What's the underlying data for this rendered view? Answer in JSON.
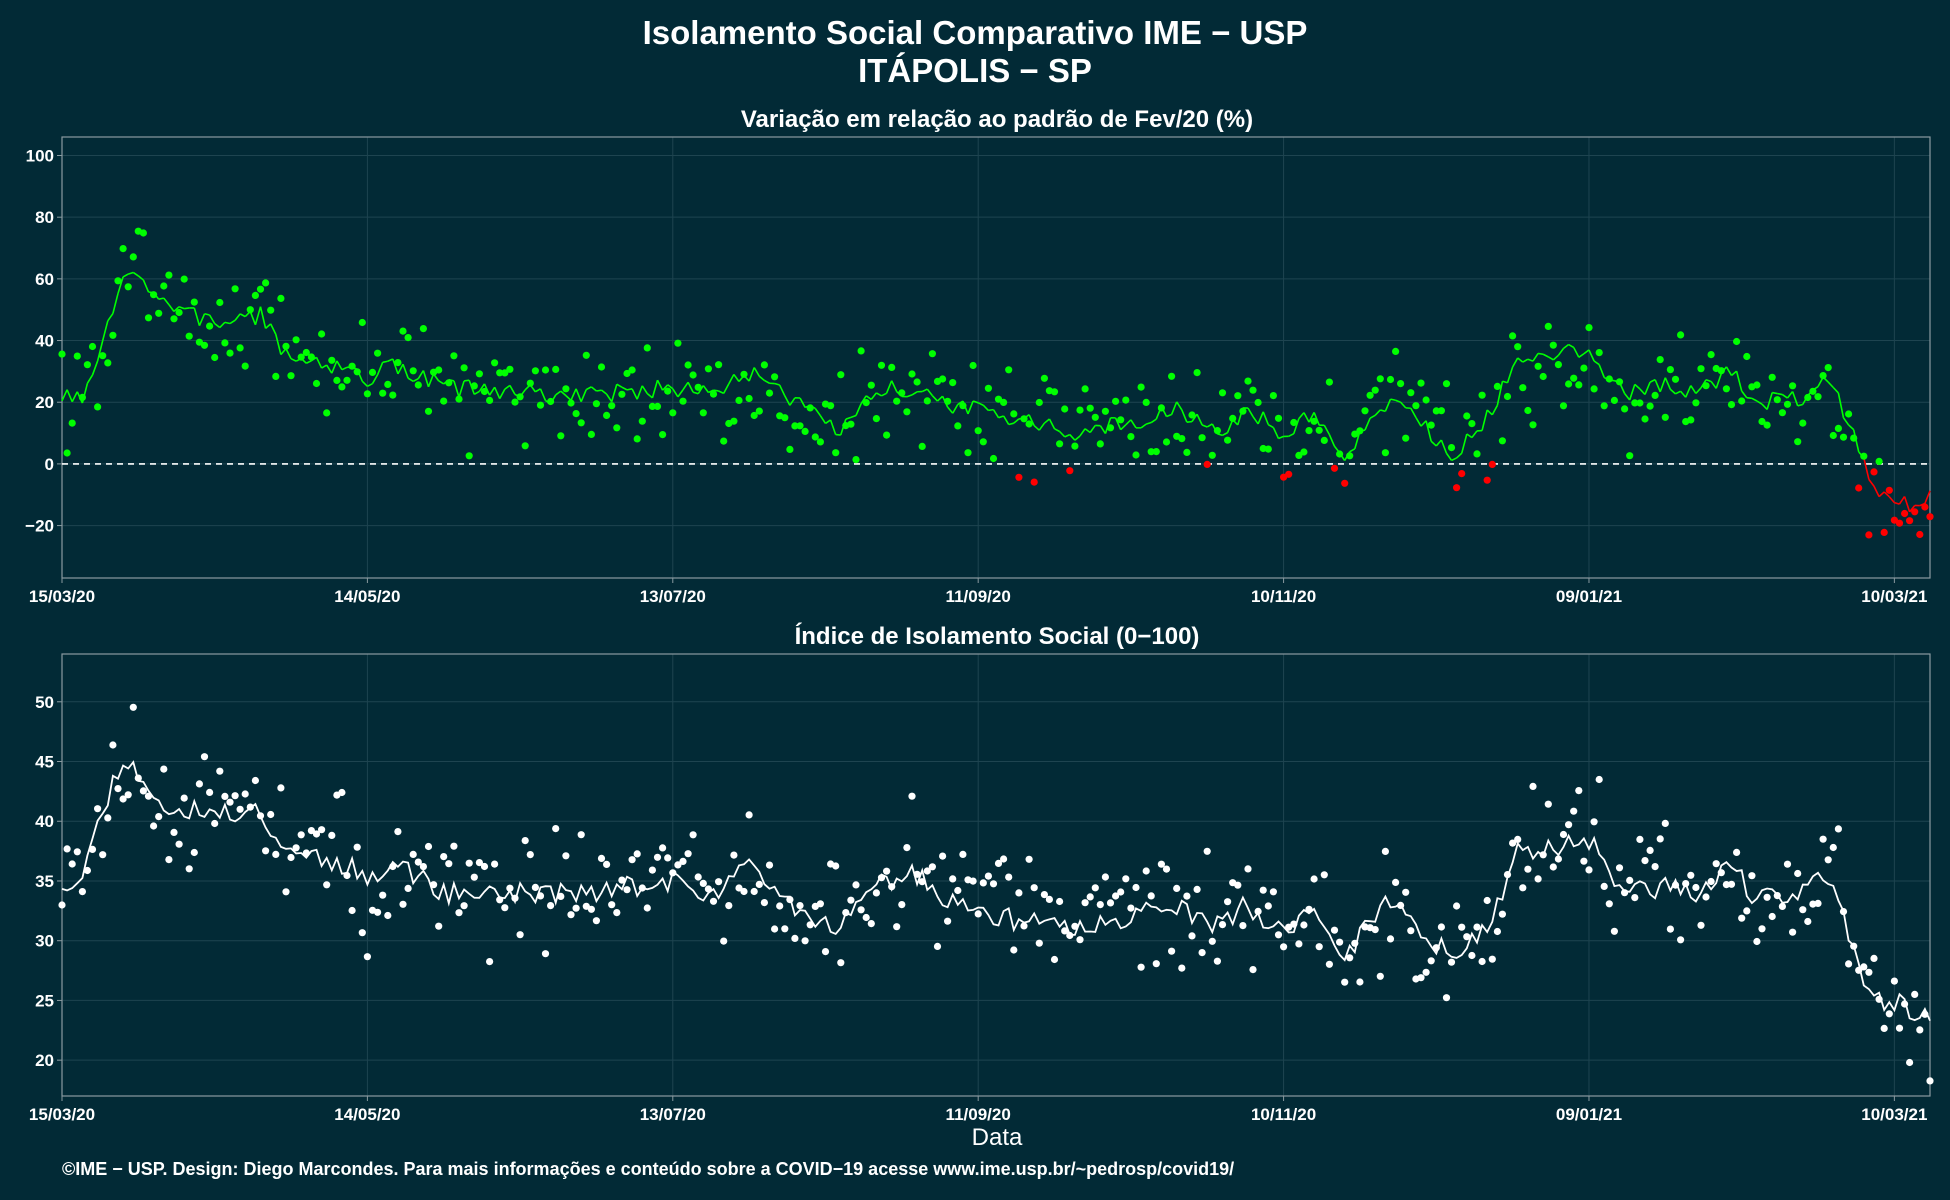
{
  "header": {
    "title": "Isolamento Social Comparativo IME − USP",
    "subtitle": "ITÁPOLIS − SP"
  },
  "footer": {
    "credit": "©IME − USP. Design: Diego Marcondes. Para mais informações e conteúdo sobre a COVID−19 acesse www.ime.usp.br/~pedrosp/covid19/"
  },
  "colors": {
    "background": "#022a36",
    "panel_border": "#8a9aa0",
    "grid": "#1e4450",
    "positive": "#00ff00",
    "negative": "#ff0000",
    "index": "#ffffff"
  },
  "chart_data": [
    {
      "type": "scatter",
      "title": "Variação em relação ao padrão de Fev/20 (%)",
      "xlabel": "",
      "ylabel": "",
      "x_range": [
        "2020-03-15",
        "2021-03-17"
      ],
      "ylim": [
        -37,
        106
      ],
      "y_ticks": [
        -20,
        0,
        20,
        40,
        60,
        80,
        100
      ],
      "x_ticks": [
        "15/03/20",
        "14/05/20",
        "13/07/20",
        "11/09/20",
        "10/11/20",
        "09/01/21",
        "10/03/21"
      ],
      "reference_line": 0,
      "grid": true,
      "series": [
        {
          "style": "points+moving-average",
          "color_rule": "green when value >= 0, red when value < 0",
          "anchors": [
            {
              "date": "2020-03-15",
              "value": 22
            },
            {
              "date": "2020-03-19",
              "value": 20
            },
            {
              "date": "2020-03-23",
              "value": 38
            },
            {
              "date": "2020-03-27",
              "value": 60
            },
            {
              "date": "2020-03-30",
              "value": 63
            },
            {
              "date": "2020-04-02",
              "value": 55
            },
            {
              "date": "2020-04-07",
              "value": 49
            },
            {
              "date": "2020-04-15",
              "value": 46
            },
            {
              "date": "2020-04-23",
              "value": 48
            },
            {
              "date": "2020-04-27",
              "value": 37
            },
            {
              "date": "2020-05-05",
              "value": 33
            },
            {
              "date": "2020-05-14",
              "value": 28
            },
            {
              "date": "2020-05-20",
              "value": 32
            },
            {
              "date": "2020-05-29",
              "value": 25
            },
            {
              "date": "2020-06-12",
              "value": 23
            },
            {
              "date": "2020-06-26",
              "value": 22
            },
            {
              "date": "2020-07-13",
              "value": 25
            },
            {
              "date": "2020-07-20",
              "value": 22
            },
            {
              "date": "2020-07-29",
              "value": 30
            },
            {
              "date": "2020-08-06",
              "value": 20
            },
            {
              "date": "2020-08-14",
              "value": 10
            },
            {
              "date": "2020-08-23",
              "value": 24
            },
            {
              "date": "2020-08-30",
              "value": 24
            },
            {
              "date": "2020-09-06",
              "value": 19
            },
            {
              "date": "2020-09-20",
              "value": 14
            },
            {
              "date": "2020-09-30",
              "value": 10
            },
            {
              "date": "2020-10-10",
              "value": 13
            },
            {
              "date": "2020-10-20",
              "value": 18
            },
            {
              "date": "2020-10-27",
              "value": 10
            },
            {
              "date": "2020-11-03",
              "value": 17
            },
            {
              "date": "2020-11-10",
              "value": 10
            },
            {
              "date": "2020-11-16",
              "value": 16
            },
            {
              "date": "2020-11-22",
              "value": 2
            },
            {
              "date": "2020-11-30",
              "value": 20
            },
            {
              "date": "2020-12-07",
              "value": 14
            },
            {
              "date": "2020-12-13",
              "value": 3
            },
            {
              "date": "2020-12-20",
              "value": 15
            },
            {
              "date": "2020-12-26",
              "value": 33
            },
            {
              "date": "2021-01-02",
              "value": 36
            },
            {
              "date": "2021-01-09",
              "value": 37
            },
            {
              "date": "2021-01-16",
              "value": 23
            },
            {
              "date": "2021-01-23",
              "value": 26
            },
            {
              "date": "2021-01-30",
              "value": 23
            },
            {
              "date": "2021-02-06",
              "value": 30
            },
            {
              "date": "2021-02-11",
              "value": 20
            },
            {
              "date": "2021-02-20",
              "value": 22
            },
            {
              "date": "2021-02-25",
              "value": 26
            },
            {
              "date": "2021-03-02",
              "value": 12
            },
            {
              "date": "2021-03-06",
              "value": -9
            },
            {
              "date": "2021-03-10",
              "value": -11
            },
            {
              "date": "2021-03-14",
              "value": -15
            },
            {
              "date": "2021-03-17",
              "value": -10
            }
          ]
        }
      ]
    },
    {
      "type": "scatter",
      "title": "Índice de Isolamento Social (0−100)",
      "xlabel": "Data",
      "ylabel": "",
      "x_range": [
        "2020-03-15",
        "2021-03-17"
      ],
      "ylim": [
        17,
        54
      ],
      "y_ticks": [
        20,
        25,
        30,
        35,
        40,
        45,
        50
      ],
      "x_ticks": [
        "15/03/20",
        "14/05/20",
        "13/07/20",
        "11/09/20",
        "10/11/20",
        "09/01/21",
        "10/03/21"
      ],
      "grid": true,
      "series": [
        {
          "style": "points+moving-average",
          "color": "#ffffff",
          "anchors": [
            {
              "date": "2020-03-15",
              "value": 34.8
            },
            {
              "date": "2020-03-19",
              "value": 35.5
            },
            {
              "date": "2020-03-23",
              "value": 41
            },
            {
              "date": "2020-03-27",
              "value": 45.5
            },
            {
              "date": "2020-03-30",
              "value": 44
            },
            {
              "date": "2020-04-02",
              "value": 41.5
            },
            {
              "date": "2020-04-07",
              "value": 41
            },
            {
              "date": "2020-04-15",
              "value": 40.5
            },
            {
              "date": "2020-04-23",
              "value": 41
            },
            {
              "date": "2020-04-27",
              "value": 38
            },
            {
              "date": "2020-05-05",
              "value": 37
            },
            {
              "date": "2020-05-14",
              "value": 35.5
            },
            {
              "date": "2020-05-20",
              "value": 36.5
            },
            {
              "date": "2020-05-29",
              "value": 34
            },
            {
              "date": "2020-06-12",
              "value": 34
            },
            {
              "date": "2020-06-26",
              "value": 34
            },
            {
              "date": "2020-07-13",
              "value": 35
            },
            {
              "date": "2020-07-20",
              "value": 33.5
            },
            {
              "date": "2020-07-29",
              "value": 36.5
            },
            {
              "date": "2020-08-06",
              "value": 33
            },
            {
              "date": "2020-08-14",
              "value": 31
            },
            {
              "date": "2020-08-23",
              "value": 35
            },
            {
              "date": "2020-08-30",
              "value": 35.5
            },
            {
              "date": "2020-09-06",
              "value": 33
            },
            {
              "date": "2020-09-20",
              "value": 31.5
            },
            {
              "date": "2020-09-30",
              "value": 31
            },
            {
              "date": "2020-10-10",
              "value": 32
            },
            {
              "date": "2020-10-20",
              "value": 33
            },
            {
              "date": "2020-10-27",
              "value": 31
            },
            {
              "date": "2020-11-03",
              "value": 33
            },
            {
              "date": "2020-11-10",
              "value": 30.5
            },
            {
              "date": "2020-11-16",
              "value": 32.5
            },
            {
              "date": "2020-11-22",
              "value": 28.5
            },
            {
              "date": "2020-11-30",
              "value": 33.5
            },
            {
              "date": "2020-12-07",
              "value": 31
            },
            {
              "date": "2020-12-13",
              "value": 28.5
            },
            {
              "date": "2020-12-20",
              "value": 31
            },
            {
              "date": "2020-12-26",
              "value": 37.5
            },
            {
              "date": "2021-01-02",
              "value": 38
            },
            {
              "date": "2021-01-09",
              "value": 38.5
            },
            {
              "date": "2021-01-16",
              "value": 34
            },
            {
              "date": "2021-01-23",
              "value": 34.5
            },
            {
              "date": "2021-01-30",
              "value": 34
            },
            {
              "date": "2021-02-06",
              "value": 36
            },
            {
              "date": "2021-02-11",
              "value": 33.5
            },
            {
              "date": "2021-02-20",
              "value": 34
            },
            {
              "date": "2021-02-25",
              "value": 35.5
            },
            {
              "date": "2021-03-02",
              "value": 29
            },
            {
              "date": "2021-03-06",
              "value": 25
            },
            {
              "date": "2021-03-10",
              "value": 25
            },
            {
              "date": "2021-03-14",
              "value": 24
            },
            {
              "date": "2021-03-17",
              "value": 24
            }
          ]
        }
      ]
    }
  ]
}
